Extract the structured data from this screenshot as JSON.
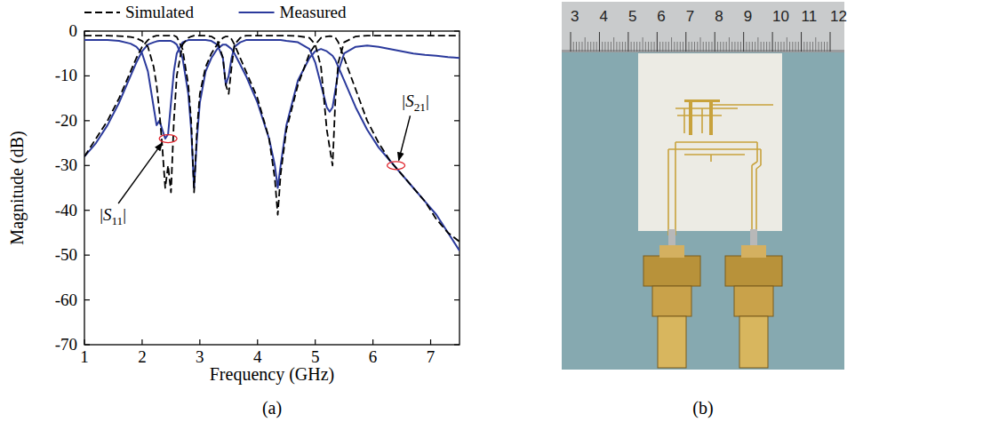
{
  "chart_data": {
    "type": "line",
    "xlabel": "Frequency (GHz)",
    "ylabel": "Magnitude (dB)",
    "caption": "(a)",
    "xlim": [
      1,
      7.5
    ],
    "xticks": [
      1,
      2,
      3,
      4,
      5,
      6,
      7
    ],
    "ylim": [
      -70,
      0
    ],
    "yticks": [
      -70,
      -60,
      -50,
      -40,
      -30,
      -20,
      -10,
      0
    ],
    "grid": false,
    "legend": "top",
    "x": [
      1.0,
      1.2,
      1.4,
      1.6,
      1.8,
      1.9,
      2.0,
      2.1,
      2.2,
      2.25,
      2.3,
      2.35,
      2.4,
      2.45,
      2.5,
      2.55,
      2.6,
      2.7,
      2.8,
      2.85,
      2.9,
      2.95,
      3.0,
      3.1,
      3.2,
      3.3,
      3.4,
      3.45,
      3.5,
      3.55,
      3.6,
      3.7,
      3.8,
      4.0,
      4.2,
      4.3,
      4.35,
      4.4,
      4.5,
      4.7,
      4.9,
      5.0,
      5.1,
      5.2,
      5.25,
      5.3,
      5.35,
      5.4,
      5.5,
      5.7,
      5.9,
      6.1,
      6.3,
      6.5,
      6.7,
      6.9,
      7.1,
      7.3,
      7.5
    ],
    "series": [
      {
        "name": "Simulated",
        "color": "#000000",
        "line_style": "dashed",
        "values": [
          -1,
          -1,
          -1,
          -1.1,
          -1.3,
          -1.6,
          -2.2,
          -3.5,
          -8,
          -12,
          -18,
          -26,
          -35,
          -30,
          -36,
          -20,
          -10,
          -3,
          -1.5,
          -1.2,
          -1,
          -1,
          -1,
          -1,
          -1.2,
          -2,
          -6,
          -12,
          -14,
          -8,
          -3,
          -1.5,
          -1,
          -1,
          -1,
          -1,
          -1,
          -1,
          -1,
          -1.1,
          -1.5,
          -3,
          -8,
          -22,
          -26,
          -30,
          -15,
          -7,
          -2.5,
          -1.2,
          -1,
          -1,
          -1,
          -1,
          -1,
          -1,
          -1,
          -1,
          -1
        ]
      },
      {
        "name": "Simulated",
        "color": "#000000",
        "line_style": "dashed",
        "values": [
          -28,
          -24,
          -20,
          -15,
          -9,
          -6,
          -3.5,
          -2,
          -1.2,
          -1,
          -1,
          -1,
          -1,
          -1,
          -1,
          -1,
          -1.3,
          -4,
          -12,
          -20,
          -36,
          -22,
          -14,
          -8,
          -5,
          -3,
          -1.5,
          -1.2,
          -1.2,
          -1.8,
          -3,
          -6,
          -9,
          -15,
          -24,
          -33,
          -41,
          -32,
          -22,
          -12,
          -5,
          -3,
          -1.5,
          -1.2,
          -1.1,
          -1.2,
          -1.5,
          -2.5,
          -6,
          -13,
          -20,
          -25,
          -29,
          -32,
          -35,
          -38,
          -42,
          -45,
          -47
        ]
      },
      {
        "name": "Measured",
        "color": "#2b3a9c",
        "line_style": "solid",
        "values": [
          -2,
          -2,
          -2,
          -2.2,
          -2.8,
          -3.5,
          -5,
          -9,
          -17,
          -21,
          -20,
          -22,
          -24,
          -23,
          -16,
          -9,
          -5,
          -2.5,
          -2,
          -2,
          -2,
          -2,
          -2,
          -2,
          -2.2,
          -3,
          -6,
          -12,
          -10,
          -6,
          -3.5,
          -2.5,
          -2,
          -2,
          -2,
          -2,
          -2,
          -2,
          -2.2,
          -2.5,
          -4,
          -7,
          -12,
          -17,
          -18,
          -17,
          -13,
          -9,
          -5,
          -3.5,
          -3.2,
          -3.5,
          -4,
          -4.5,
          -5,
          -5.3,
          -5.5,
          -5.8,
          -6
        ]
      },
      {
        "name": "Measured",
        "color": "#2b3a9c",
        "line_style": "solid",
        "values": [
          -28,
          -25,
          -21,
          -16,
          -10,
          -7,
          -4.5,
          -3,
          -2.5,
          -2.3,
          -2.2,
          -2.2,
          -2.2,
          -2.2,
          -2.2,
          -2.5,
          -3,
          -6,
          -14,
          -22,
          -35,
          -24,
          -16,
          -9,
          -6,
          -4,
          -3,
          -3,
          -3.5,
          -4,
          -5,
          -7.5,
          -10,
          -16,
          -24,
          -30,
          -35,
          -30,
          -21,
          -11,
          -6,
          -4.5,
          -4,
          -4.5,
          -5,
          -5.5,
          -6.5,
          -8,
          -11,
          -17,
          -22,
          -26,
          -29,
          -32,
          -35,
          -38,
          -41,
          -45,
          -49
        ]
      }
    ],
    "annotations": [
      {
        "text": "|S11|",
        "x": 2.45,
        "y": -24
      },
      {
        "text": "|S21|",
        "x": 6.4,
        "y": -30
      }
    ]
  },
  "photo": {
    "ruler_cm": [
      3,
      4,
      5,
      6,
      7,
      8,
      9,
      10,
      11,
      12
    ],
    "caption": "(b)"
  }
}
